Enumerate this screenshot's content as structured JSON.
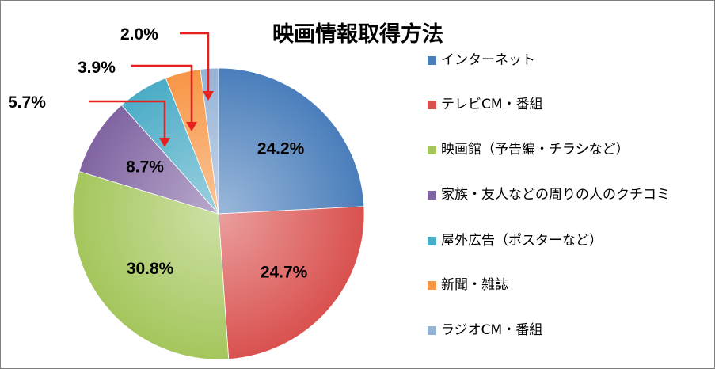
{
  "chart_data": {
    "type": "pie",
    "title": "映画情報取得方法",
    "slices": [
      {
        "label": "インターネット",
        "value": 24.2,
        "display": "24.2%",
        "color": "#4a7ebb"
      },
      {
        "label": "テレビCM・番組",
        "value": 24.7,
        "display": "24.7%",
        "color": "#d9514f"
      },
      {
        "label": "映画館（予告編・チラシなど）",
        "value": 30.8,
        "display": "30.8%",
        "color": "#a4c65c"
      },
      {
        "label": "家族・友人などの周りの人のクチコミ",
        "value": 8.7,
        "display": "8.7%",
        "color": "#8064a2"
      },
      {
        "label": "屋外広告（ポスターなど）",
        "value": 5.7,
        "display": "5.7%",
        "color": "#4bacc6"
      },
      {
        "label": "新聞・雑誌",
        "value": 3.9,
        "display": "3.9%",
        "color": "#f79646"
      },
      {
        "label": "ラジオCM・番組",
        "value": 2.0,
        "display": "2.0%",
        "color": "#95b3d7"
      }
    ],
    "legend_position": "right",
    "callout_arrow_color": "#e8201d"
  }
}
